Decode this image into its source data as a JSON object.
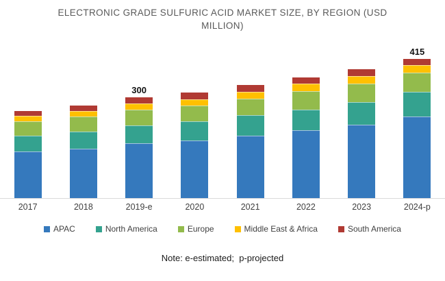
{
  "title": {
    "text": "ELECTRONIC GRADE SULFURIC ACID MARKET SIZE, BY REGION (USD MILLION)"
  },
  "note": {
    "text": "Note: e-estimated;  p-projected"
  },
  "colors": {
    "apac": "#3579BD",
    "north_america": "#34A28F",
    "europe": "#93BB4C",
    "middle_east_africa": "#FFC000",
    "south_america": "#B03A33",
    "axis_line": "#D9D9D9",
    "title_text": "#595959",
    "axis_label_text": "#404040",
    "data_label_text": "#111111"
  },
  "chart_data": {
    "type": "bar",
    "stacked": true,
    "title": "ELECTRONIC GRADE SULFURIC ACID MARKET SIZE, BY REGION (USD MILLION)",
    "categories": [
      "2017",
      "2018",
      "2019-e",
      "2020",
      "2021",
      "2022",
      "2023",
      "2024-p"
    ],
    "series": [
      {
        "name": "APAC",
        "color": "#3579BD",
        "values": [
          138,
          148,
          163,
          172,
          186,
          202,
          218,
          242
        ]
      },
      {
        "name": "North America",
        "color": "#34A28F",
        "values": [
          48,
          50,
          54,
          56,
          61,
          61,
          67,
          74
        ]
      },
      {
        "name": "Europe",
        "color": "#93BB4C",
        "values": [
          43,
          44,
          46,
          48,
          50,
          55,
          57,
          58
        ]
      },
      {
        "name": "Middle East & Africa",
        "color": "#FFC000",
        "values": [
          16,
          17,
          18,
          18,
          20,
          22,
          22,
          22
        ]
      },
      {
        "name": "South America",
        "color": "#B03A33",
        "values": [
          15,
          17,
          19,
          20,
          19,
          20,
          20,
          19
        ]
      }
    ],
    "totals": [
      260,
      276,
      300,
      314,
      336,
      360,
      384,
      415
    ],
    "data_labels": [
      "",
      "",
      "300",
      "",
      "",
      "",
      "",
      "415"
    ],
    "unit": "USD Million",
    "xlabel": "",
    "ylabel": "",
    "ylim": [
      0,
      430
    ],
    "grid": false,
    "y_axis_visible": false,
    "legend_position": "bottom"
  }
}
